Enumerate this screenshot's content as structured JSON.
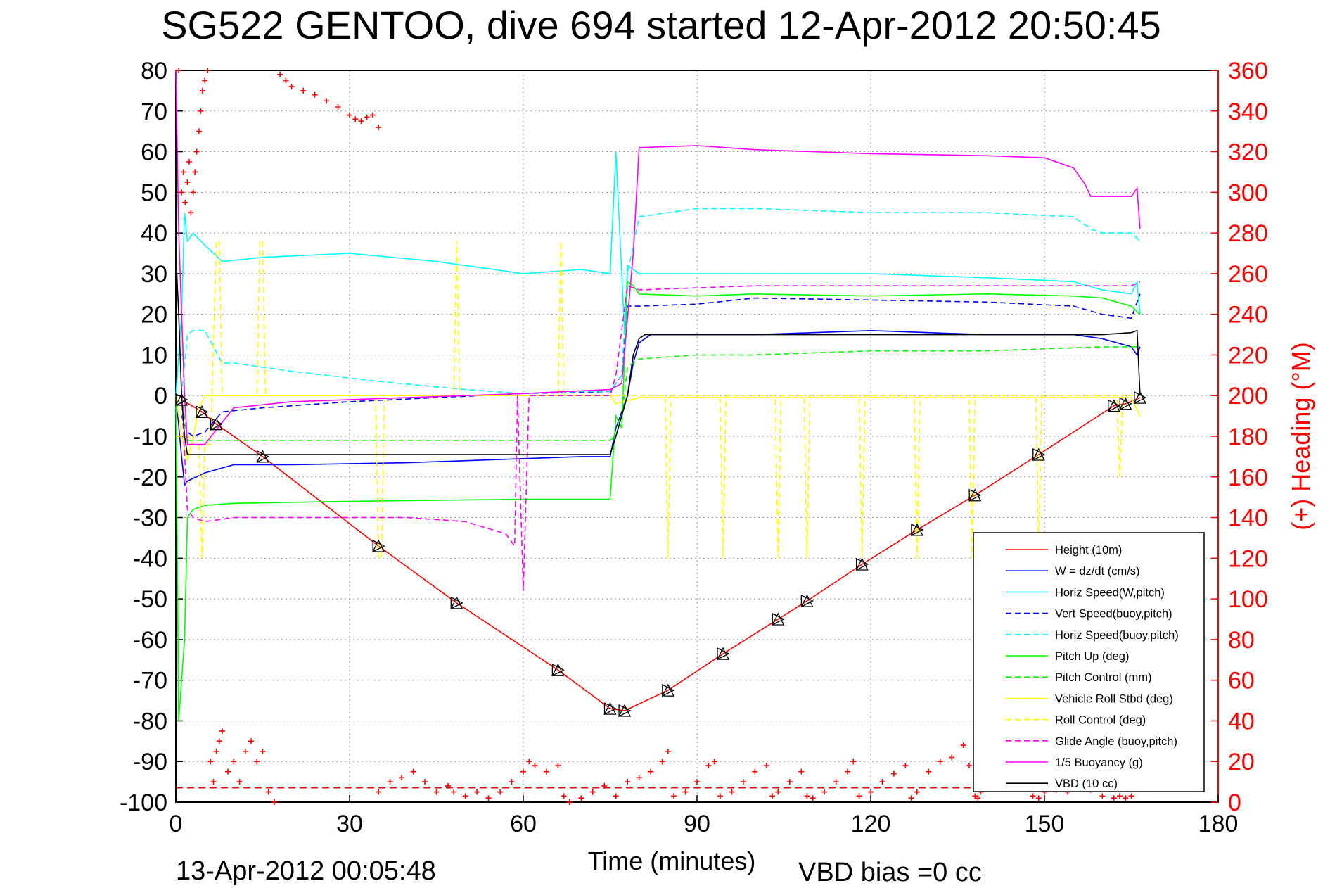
{
  "chart_data": {
    "type": "line",
    "title": "SG522 GENTOO, dive 694 started 12-Apr-2012 20:50:45",
    "xlabel": "Time (minutes)",
    "ylabel_right": "(+) Heading (°M)",
    "footer_left": "13-Apr-2012 00:05:48",
    "footer_right": "VBD bias =0 cc",
    "xlim": [
      0,
      180
    ],
    "ylim": [
      -100,
      80
    ],
    "ylim_right": [
      0,
      360
    ],
    "x_ticks": [
      "0",
      "30",
      "60",
      "90",
      "120",
      "150",
      "180"
    ],
    "y_ticks": [
      "80",
      "70",
      "60",
      "50",
      "40",
      "30",
      "20",
      "10",
      "0",
      "-10",
      "-20",
      "-30",
      "-40",
      "-50",
      "-60",
      "-70",
      "-80",
      "-90",
      "-100"
    ],
    "y_ticks_right": [
      "360",
      "340",
      "320",
      "300",
      "280",
      "260",
      "240",
      "220",
      "200",
      "180",
      "160",
      "140",
      "120",
      "100",
      "80",
      "60",
      "40",
      "20",
      "0"
    ],
    "grid": true,
    "legend_position": "bottom-right",
    "series": [
      {
        "name": "Height (10m)",
        "color": "#ff0000",
        "style": "solid",
        "x": [
          1,
          4.5,
          7,
          15,
          35,
          48.5,
          66,
          75,
          77.5,
          85,
          94.5,
          104,
          109,
          118.5,
          128,
          138,
          149,
          162,
          164,
          166.5
        ],
        "y": [
          -1,
          -4,
          -7,
          -15,
          -37,
          -51,
          -67.5,
          -77,
          -77.5,
          -72.5,
          -63.5,
          -55,
          -50.5,
          -41.5,
          -33,
          -24.5,
          -14.5,
          -2.5,
          -2,
          -0.5
        ]
      },
      {
        "name": "W = dz/dt (cm/s)",
        "color": "#0000ff",
        "style": "solid",
        "x": [
          0,
          1,
          1.5,
          2,
          5,
          10,
          20,
          40,
          60,
          70,
          75,
          76,
          78,
          79,
          80,
          82,
          100,
          120,
          140,
          155,
          160,
          165,
          166,
          166.5
        ],
        "y": [
          0,
          -15,
          -22,
          -21,
          -19,
          -17,
          -17,
          -16.5,
          -15.5,
          -15,
          -15,
          -8,
          0,
          8,
          13,
          15,
          15,
          16,
          15,
          15,
          14,
          12,
          10,
          12
        ]
      },
      {
        "name": "Horiz Speed(W,pitch)",
        "color": "#00ffff",
        "style": "solid",
        "x": [
          0,
          1,
          1.5,
          2,
          3,
          5,
          8,
          15,
          30,
          45,
          60,
          70,
          75,
          76,
          77,
          77.5,
          78,
          80,
          90,
          100,
          120,
          140,
          155,
          160,
          165,
          166,
          166.5
        ],
        "y": [
          0,
          20,
          45,
          38,
          40,
          37,
          33,
          34,
          35,
          33,
          30,
          31,
          30,
          60,
          30,
          15,
          32,
          30,
          30,
          30,
          30,
          29,
          28,
          26,
          25,
          28,
          20
        ]
      },
      {
        "name": "Vert Speed(buoy,pitch)",
        "color": "#0000ff",
        "style": "dashed",
        "x": [
          1,
          2,
          3,
          5,
          8,
          15,
          30,
          45,
          60,
          70,
          75,
          77,
          78,
          80,
          90,
          100,
          120,
          140,
          155,
          160,
          165,
          166.5
        ],
        "y": [
          -5,
          -9,
          -10,
          -9,
          -4,
          -3,
          -1.5,
          -0.5,
          0.5,
          0.8,
          1,
          5,
          22,
          22,
          22.5,
          24,
          23.5,
          23,
          22,
          20,
          19,
          25
        ]
      },
      {
        "name": "Horiz Speed(buoy,pitch)",
        "color": "#00ffff",
        "style": "dashed",
        "x": [
          1,
          2,
          3,
          5,
          8,
          10,
          20,
          35,
          50,
          60,
          70,
          75,
          77,
          78,
          80,
          90,
          100,
          120,
          140,
          155,
          158,
          160,
          165,
          166.5
        ],
        "y": [
          0,
          15,
          16,
          16,
          8,
          8,
          6,
          3.5,
          1.5,
          0.5,
          1,
          1,
          5,
          30,
          44,
          46,
          46,
          45,
          45,
          44,
          41,
          40,
          40,
          38
        ]
      },
      {
        "name": "Pitch Up (deg)",
        "color": "#00ff00",
        "style": "solid",
        "x": [
          0,
          0.5,
          1,
          1.5,
          2,
          3,
          5,
          10,
          30,
          60,
          75,
          76,
          77,
          78,
          79,
          80,
          90,
          100,
          120,
          140,
          155,
          160,
          165,
          166.5
        ],
        "y": [
          0,
          -80,
          -70,
          -60,
          -30,
          -28,
          -27,
          -26.5,
          -26,
          -25.5,
          -25.5,
          -5,
          -8,
          28,
          27,
          25,
          24.5,
          25,
          24.5,
          25,
          24.5,
          24,
          22,
          20
        ]
      },
      {
        "name": "Pitch Control (mm)",
        "color": "#00ff00",
        "style": "dashed",
        "x": [
          1,
          2,
          5,
          10,
          30,
          60,
          75,
          76,
          77,
          78,
          80,
          90,
          100,
          120,
          140,
          160,
          166
        ],
        "y": [
          0,
          -11,
          -11,
          -11,
          -11,
          -11,
          -11,
          -10,
          -5,
          7,
          9,
          10,
          10,
          11,
          11,
          12,
          12
        ]
      },
      {
        "name": "Vehicle Roll Stbd (deg)",
        "color": "#ffff00",
        "style": "solid",
        "x": [
          0,
          1,
          2,
          3,
          4,
          5,
          7,
          10,
          20,
          30,
          40,
          50,
          60,
          70,
          75,
          76,
          80,
          90,
          100,
          120,
          140,
          160,
          165,
          166.5
        ],
        "y": [
          0,
          -10,
          -16,
          -10,
          -3,
          0,
          0,
          0,
          0,
          0,
          0,
          0,
          0,
          0,
          0,
          -2,
          -0.5,
          -0.5,
          -0.5,
          -0.5,
          -0.5,
          -0.5,
          -0.5,
          -5
        ]
      },
      {
        "name": "Roll Control (deg)",
        "color": "#ffff00",
        "style": "dashed",
        "x": [
          0,
          2,
          3,
          4,
          4.5,
          5,
          6,
          7,
          7.5,
          8,
          14,
          14.5,
          15,
          15.5,
          16,
          34.5,
          35,
          35.5,
          36,
          48,
          48.5,
          49,
          66,
          66.5,
          67,
          75,
          84.5,
          85,
          85.5,
          94,
          94.5,
          95,
          103.5,
          104,
          104.5,
          108.5,
          109,
          109.5,
          118,
          118.5,
          119,
          127.5,
          128,
          128.5,
          137,
          137.5,
          138,
          148.5,
          149,
          149.5,
          162.5,
          163,
          163.5,
          166
        ],
        "y": [
          -10,
          -10,
          -12,
          -12,
          -40,
          -12,
          -12,
          38,
          38,
          0,
          0,
          38,
          38,
          0,
          0,
          0,
          -40,
          -40,
          0,
          0,
          38,
          0,
          0,
          38,
          0,
          0,
          0,
          -40,
          0,
          0,
          -40,
          0,
          0,
          -40,
          0,
          0,
          -40,
          0,
          0,
          -40,
          0,
          0,
          -40,
          0,
          0,
          -40,
          0,
          0,
          -40,
          0,
          0,
          -20,
          0,
          0
        ]
      },
      {
        "name": "Glide Angle (buoy,pitch)",
        "color": "#ff00ff",
        "style": "dashed",
        "x": [
          1,
          2,
          3,
          5,
          10,
          20,
          30,
          40,
          50,
          57,
          58.5,
          59,
          60,
          61,
          75,
          76,
          78,
          80,
          90,
          100,
          120,
          140,
          155,
          160,
          165,
          166.5
        ],
        "y": [
          0,
          -28,
          -30,
          -31,
          -30,
          -30,
          -30,
          -30,
          -31,
          -34,
          -37,
          0,
          -48,
          0,
          0,
          5,
          27,
          26,
          26.5,
          27,
          27,
          27,
          27,
          27,
          27,
          28
        ]
      },
      {
        "name": "1/5 Buoyancy (g)",
        "color": "#ff00ff",
        "style": "solid",
        "x": [
          0,
          0.5,
          1,
          1.5,
          2,
          3,
          5,
          10,
          20,
          40,
          60,
          75,
          77,
          79,
          80,
          90,
          100,
          120,
          140,
          150,
          155,
          156,
          157,
          158,
          160,
          165,
          166,
          166.5
        ],
        "y": [
          80,
          40,
          20,
          0,
          -12,
          -12,
          -12,
          -3,
          -1.5,
          -0.5,
          0.5,
          1.5,
          3,
          35,
          61,
          61.5,
          60.5,
          59.5,
          59,
          58.5,
          56,
          54,
          52,
          49,
          49,
          49,
          51,
          41
        ]
      },
      {
        "name": "VBD (10 cc)",
        "color": "#000000",
        "style": "solid",
        "x": [
          0,
          0.5,
          1,
          1.5,
          2,
          3,
          5,
          10,
          30,
          60,
          75,
          76,
          78,
          79,
          80,
          81,
          100,
          120,
          140,
          160,
          165,
          166,
          166.5
        ],
        "y": [
          35,
          20,
          0,
          -10,
          -14.5,
          -14.5,
          -14.5,
          -14.5,
          -14.5,
          -14.5,
          -14.5,
          -10,
          0,
          10,
          14,
          15,
          15,
          15,
          15,
          15,
          15.5,
          16,
          0
        ]
      }
    ],
    "heading_markers": {
      "name": "Heading",
      "axis": "right",
      "color": "#ff0000",
      "marker": "+",
      "x": [
        0.5,
        1,
        1.3,
        1.6,
        2,
        2.3,
        2.6,
        3,
        3.3,
        3.6,
        4,
        4.3,
        4.6,
        5,
        5.5,
        6,
        6.5,
        7,
        7.5,
        8,
        9,
        10,
        11,
        12,
        13,
        14,
        15,
        16,
        17,
        18,
        19,
        20,
        22,
        24,
        26,
        28,
        30,
        31,
        32,
        33,
        34,
        35,
        35,
        37,
        39,
        41,
        43,
        45,
        47,
        48,
        50,
        52,
        54,
        56,
        58,
        60,
        61,
        62,
        64,
        66,
        67,
        68,
        70,
        72,
        74,
        76,
        78,
        80,
        82,
        84,
        85,
        86,
        88,
        90,
        92,
        93,
        94,
        96,
        98,
        100,
        102,
        103,
        104,
        106,
        108,
        109,
        110,
        112,
        114,
        116,
        117,
        118,
        120,
        122,
        124,
        126,
        127,
        128,
        130,
        132,
        134,
        136,
        137,
        138,
        138.5,
        139,
        140,
        142,
        144,
        146,
        148,
        149,
        150,
        152,
        154,
        156,
        158,
        160,
        162,
        163,
        164,
        165
      ],
      "y": [
        360,
        300,
        310,
        295,
        305,
        315,
        290,
        300,
        310,
        320,
        330,
        340,
        350,
        355,
        360,
        20,
        10,
        25,
        30,
        35,
        15,
        20,
        10,
        25,
        30,
        20,
        25,
        5,
        0,
        358,
        355,
        352,
        350,
        348,
        345,
        342,
        338,
        336,
        335,
        337,
        338,
        332,
        5,
        10,
        12,
        15,
        10,
        5,
        8,
        5,
        3,
        5,
        2,
        5,
        10,
        15,
        20,
        18,
        15,
        18,
        3,
        0,
        2,
        5,
        8,
        3,
        10,
        12,
        15,
        20,
        25,
        3,
        5,
        10,
        18,
        20,
        3,
        5,
        10,
        15,
        18,
        3,
        5,
        10,
        15,
        3,
        2,
        5,
        10,
        15,
        20,
        3,
        5,
        10,
        14,
        18,
        2,
        5,
        15,
        20,
        22,
        28,
        18,
        3,
        2,
        5,
        8,
        10,
        12,
        8,
        3,
        2,
        5,
        6,
        5,
        8,
        6,
        3,
        2,
        3,
        2,
        3
      ]
    },
    "dashed_reference": {
      "axis": "right",
      "value": 7,
      "color": "#ff0000",
      "from_x": 0,
      "to_x": 150
    },
    "legend": [
      "Height (10m)",
      "W = dz/dt (cm/s)",
      "Horiz Speed(W,pitch)",
      "Vert Speed(buoy,pitch)",
      "Horiz Speed(buoy,pitch)",
      "Pitch Up (deg)",
      "Pitch Control (mm)",
      "Vehicle Roll Stbd (deg)",
      "Roll Control (deg)",
      "Glide Angle (buoy,pitch)",
      "1/5 Buoyancy (g)",
      "VBD (10 cc)"
    ],
    "height_triangles_x": [
      1,
      4.5,
      7,
      15,
      35,
      48.5,
      66,
      75,
      77.5,
      85,
      94.5,
      104,
      109,
      118.5,
      128,
      138,
      149,
      162,
      164,
      166.5
    ],
    "height_triangles_y": [
      -1,
      -4,
      -7,
      -15,
      -37,
      -51,
      -67.5,
      -77,
      -77.5,
      -72.5,
      -63.5,
      -55,
      -50.5,
      -41.5,
      -33,
      -24.5,
      -14.5,
      -2.5,
      -2,
      -0.5
    ]
  }
}
